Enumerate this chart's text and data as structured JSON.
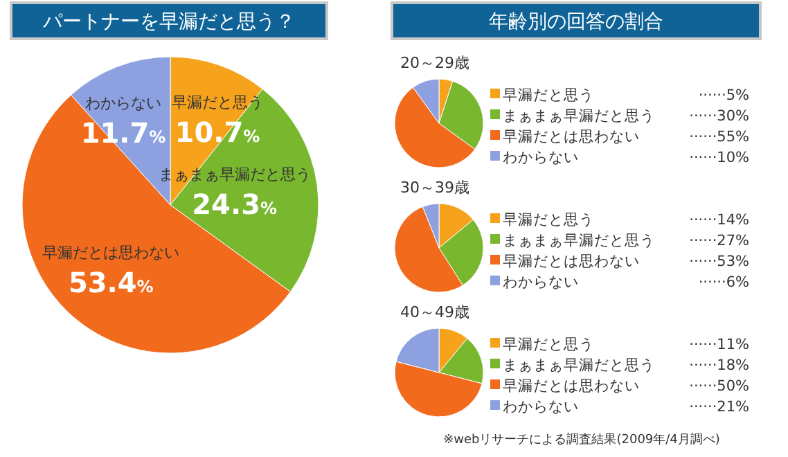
{
  "chart_data": [
    {
      "type": "pie",
      "title": "パートナーを早漏だと思う？",
      "categories": [
        "早漏だと思う",
        "まぁまぁ早漏だと思う",
        "早漏だとは思わない",
        "わからない"
      ],
      "values": [
        10.7,
        24.3,
        53.4,
        11.7
      ],
      "colors": [
        "#f7a21b",
        "#79b72f",
        "#f26b1d",
        "#8da1e0"
      ],
      "value_labels": [
        "10.7%",
        "24.3%",
        "53.4%",
        "11.7%"
      ]
    },
    {
      "type": "pie",
      "title": "年齢別の回答の割合",
      "subtitle": "20～29歳",
      "categories": [
        "早漏だと思う",
        "まぁまぁ早漏だと思う",
        "早漏だとは思わない",
        "わからない"
      ],
      "values": [
        5,
        30,
        55,
        10
      ],
      "colors": [
        "#f7a21b",
        "#79b72f",
        "#f26b1d",
        "#8da1e0"
      ],
      "value_labels": [
        "······5%",
        "······30%",
        "······55%",
        "······10%"
      ],
      "legend": "right"
    },
    {
      "type": "pie",
      "subtitle": "30～39歳",
      "categories": [
        "早漏だと思う",
        "まぁまぁ早漏だと思う",
        "早漏だとは思わない",
        "わからない"
      ],
      "values": [
        14,
        27,
        53,
        6
      ],
      "colors": [
        "#f7a21b",
        "#79b72f",
        "#f26b1d",
        "#8da1e0"
      ],
      "value_labels": [
        "······14%",
        "······27%",
        "······53%",
        "······6%"
      ],
      "legend": "right"
    },
    {
      "type": "pie",
      "subtitle": "40～49歳",
      "categories": [
        "早漏だと思う",
        "まぁまぁ早漏だと思う",
        "早漏だとは思わない",
        "わからない"
      ],
      "values": [
        11,
        18,
        50,
        21
      ],
      "colors": [
        "#f7a21b",
        "#79b72f",
        "#f26b1d",
        "#8da1e0"
      ],
      "value_labels": [
        "······11%",
        "······18%",
        "······50%",
        "······21%"
      ],
      "legend": "right",
      "annotations": [
        "※webリサーチによる調査結果(2009年/4月調べ)"
      ]
    }
  ]
}
